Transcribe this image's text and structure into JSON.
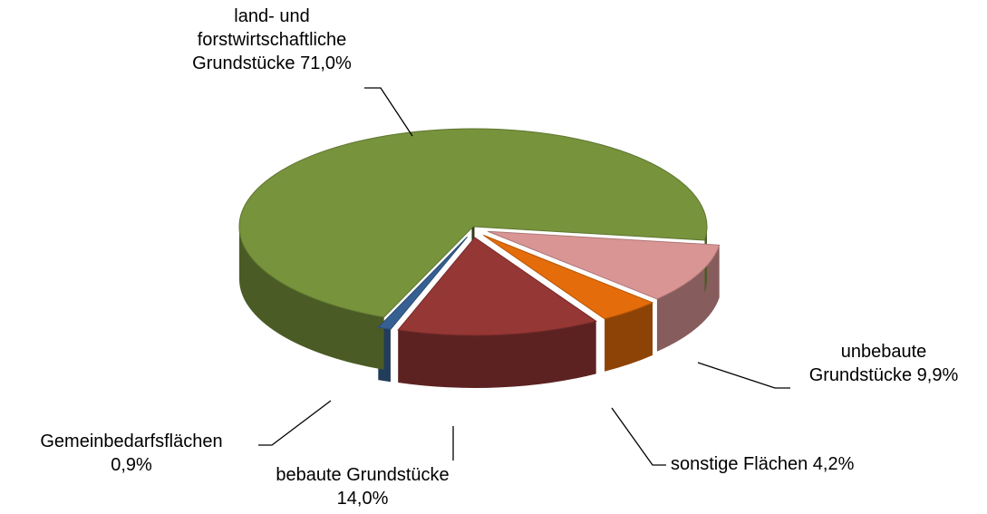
{
  "chart_data": {
    "type": "pie3d",
    "categories": [
      "land- und forstwirtschaftliche Grundstücke",
      "unbebaute Grundstücke",
      "sonstige Flächen",
      "bebaute Grundstücke",
      "Gemeinbedarfsflächen"
    ],
    "values": [
      71.0,
      9.9,
      4.2,
      14.0,
      0.9
    ],
    "value_labels": [
      "71,0%",
      "9,9%",
      "4,2%",
      "14,0%",
      "0,9%"
    ],
    "colors": [
      "#77933c",
      "#d99594",
      "#e46c0a",
      "#953735",
      "#376092"
    ]
  }
}
